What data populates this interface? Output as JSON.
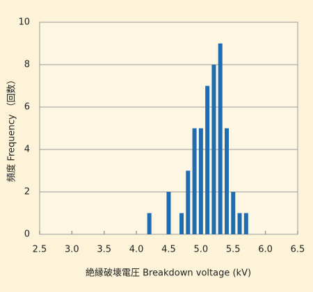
{
  "chart_data": {
    "type": "bar",
    "x_label": "絶縁破壊電圧 Breakdown voltage (kV)",
    "y_label": "頻度 Frequency （回数）",
    "x": [
      4.2,
      4.5,
      4.7,
      4.8,
      4.9,
      5.0,
      5.1,
      5.2,
      5.3,
      5.4,
      5.5,
      5.6,
      5.7
    ],
    "values": [
      1,
      2,
      1,
      3,
      5,
      5,
      7,
      8,
      9,
      5,
      2,
      1,
      1
    ],
    "color": "#1f6db0",
    "xlim": [
      2.5,
      6.5
    ],
    "xticks": [
      2.5,
      {
        "value": 3,
        "label": "3.0"
      },
      3.5,
      {
        "value": 4,
        "label": "4.0"
      },
      4.5,
      {
        "value": 5,
        "label": "5.0"
      },
      5.5,
      {
        "value": 6,
        "label": "6.0"
      },
      6.5
    ],
    "ylim": [
      0,
      10
    ],
    "yticks": [
      0,
      2,
      4,
      6,
      8,
      10
    ],
    "grid": true
  }
}
